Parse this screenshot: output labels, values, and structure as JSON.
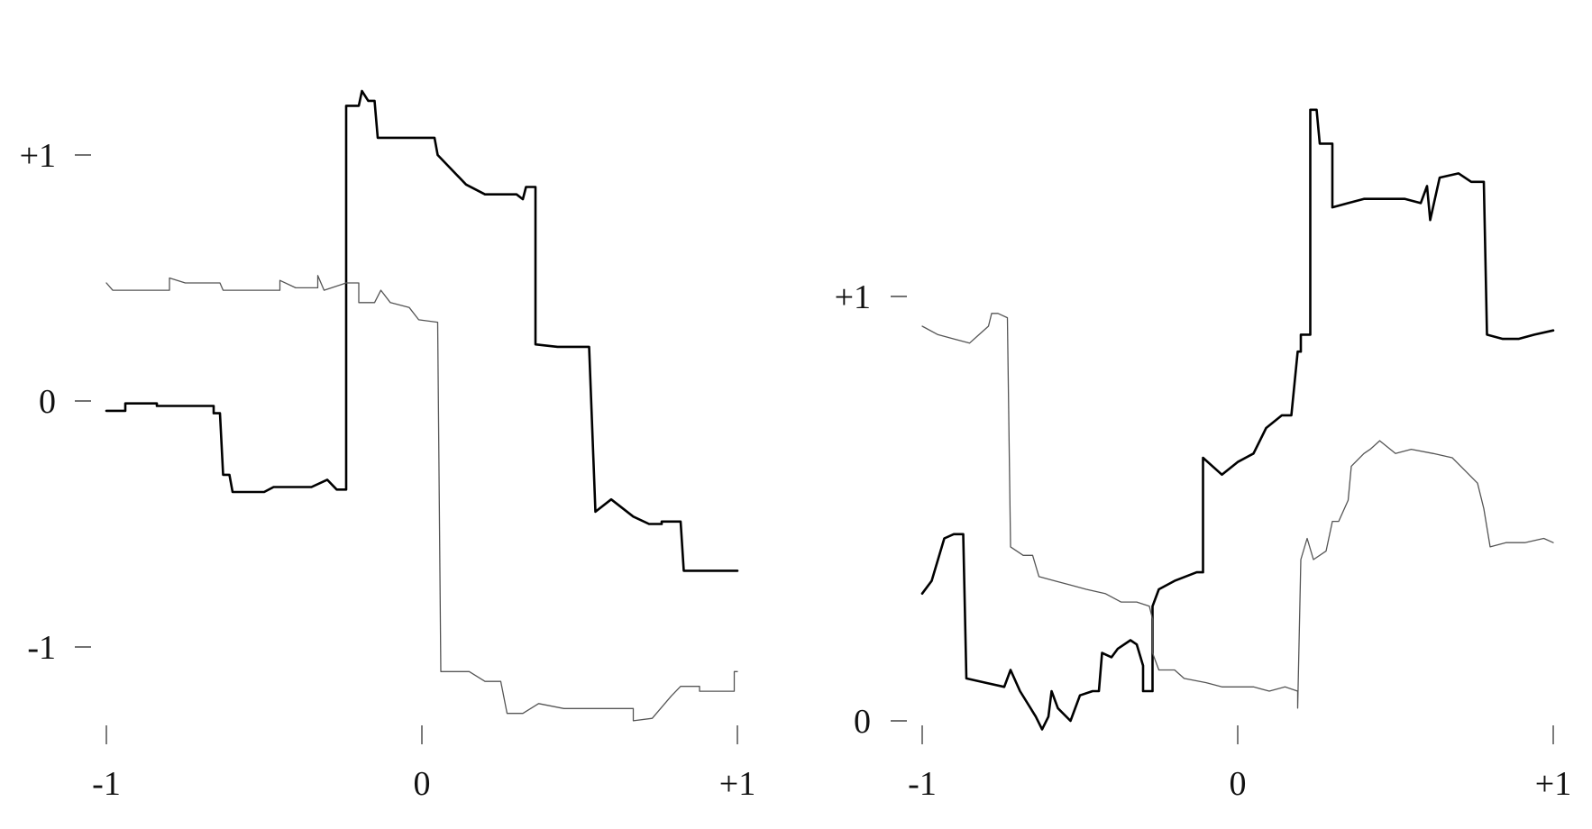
{
  "chart_data": [
    {
      "type": "line",
      "title": "",
      "xlabel": "",
      "ylabel": "",
      "xlim": [
        -1,
        1
      ],
      "ylim": [
        -1.3,
        1.25
      ],
      "x_ticks": [
        {
          "value": -1,
          "label": "-1"
        },
        {
          "value": 0,
          "label": "0"
        },
        {
          "value": 1,
          "label": "+1"
        }
      ],
      "y_ticks": [
        {
          "value": 1,
          "label": "+1"
        },
        {
          "value": 0,
          "label": "0"
        },
        {
          "value": -1,
          "label": "-1"
        }
      ],
      "series": [
        {
          "color": "#000000",
          "weight": "thick",
          "points": [
            [
              -1.0,
              -0.04
            ],
            [
              -0.94,
              -0.04
            ],
            [
              -0.94,
              -0.01
            ],
            [
              -0.84,
              -0.01
            ],
            [
              -0.84,
              -0.02
            ],
            [
              -0.7,
              -0.02
            ],
            [
              -0.66,
              -0.02
            ],
            [
              -0.66,
              -0.05
            ],
            [
              -0.64,
              -0.05
            ],
            [
              -0.63,
              -0.3
            ],
            [
              -0.61,
              -0.3
            ],
            [
              -0.6,
              -0.37
            ],
            [
              -0.5,
              -0.37
            ],
            [
              -0.47,
              -0.35
            ],
            [
              -0.35,
              -0.35
            ],
            [
              -0.3,
              -0.32
            ],
            [
              -0.27,
              -0.36
            ],
            [
              -0.24,
              -0.36
            ],
            [
              -0.24,
              1.2
            ],
            [
              -0.2,
              1.2
            ],
            [
              -0.19,
              1.26
            ],
            [
              -0.17,
              1.22
            ],
            [
              -0.15,
              1.22
            ],
            [
              -0.14,
              1.07
            ],
            [
              -0.04,
              1.07
            ],
            [
              0.04,
              1.07
            ],
            [
              0.05,
              1.0
            ],
            [
              0.14,
              0.88
            ],
            [
              0.2,
              0.84
            ],
            [
              0.3,
              0.84
            ],
            [
              0.32,
              0.82
            ],
            [
              0.33,
              0.87
            ],
            [
              0.36,
              0.87
            ],
            [
              0.36,
              0.23
            ],
            [
              0.43,
              0.22
            ],
            [
              0.53,
              0.22
            ],
            [
              0.55,
              -0.45
            ],
            [
              0.6,
              -0.4
            ],
            [
              0.67,
              -0.47
            ],
            [
              0.72,
              -0.5
            ],
            [
              0.76,
              -0.5
            ],
            [
              0.76,
              -0.49
            ],
            [
              0.82,
              -0.49
            ],
            [
              0.83,
              -0.69
            ],
            [
              0.87,
              -0.69
            ],
            [
              1.0,
              -0.69
            ]
          ]
        },
        {
          "color": "#555555",
          "weight": "thin",
          "points": [
            [
              -1.0,
              0.48
            ],
            [
              -0.98,
              0.45
            ],
            [
              -0.8,
              0.45
            ],
            [
              -0.8,
              0.5
            ],
            [
              -0.75,
              0.48
            ],
            [
              -0.64,
              0.48
            ],
            [
              -0.63,
              0.45
            ],
            [
              -0.5,
              0.45
            ],
            [
              -0.45,
              0.45
            ],
            [
              -0.45,
              0.49
            ],
            [
              -0.4,
              0.46
            ],
            [
              -0.33,
              0.46
            ],
            [
              -0.33,
              0.51
            ],
            [
              -0.31,
              0.45
            ],
            [
              -0.24,
              0.48
            ],
            [
              -0.2,
              0.48
            ],
            [
              -0.2,
              0.4
            ],
            [
              -0.15,
              0.4
            ],
            [
              -0.13,
              0.45
            ],
            [
              -0.1,
              0.4
            ],
            [
              -0.04,
              0.38
            ],
            [
              -0.01,
              0.33
            ],
            [
              0.05,
              0.32
            ],
            [
              0.06,
              -1.1
            ],
            [
              0.15,
              -1.1
            ],
            [
              0.2,
              -1.14
            ],
            [
              0.25,
              -1.14
            ],
            [
              0.27,
              -1.27
            ],
            [
              0.32,
              -1.27
            ],
            [
              0.37,
              -1.23
            ],
            [
              0.45,
              -1.25
            ],
            [
              0.55,
              -1.25
            ],
            [
              0.67,
              -1.25
            ],
            [
              0.67,
              -1.3
            ],
            [
              0.73,
              -1.29
            ],
            [
              0.79,
              -1.2
            ],
            [
              0.82,
              -1.16
            ],
            [
              0.88,
              -1.16
            ],
            [
              0.88,
              -1.18
            ],
            [
              0.99,
              -1.18
            ],
            [
              0.99,
              -1.1
            ],
            [
              1.0,
              -1.1
            ]
          ]
        }
      ]
    },
    {
      "type": "line",
      "title": "",
      "xlabel": "",
      "ylabel": "",
      "xlim": [
        -1,
        1
      ],
      "ylim": [
        -0.05,
        1.5
      ],
      "x_ticks": [
        {
          "value": -1,
          "label": "-1"
        },
        {
          "value": 0,
          "label": "0"
        },
        {
          "value": 1,
          "label": "+1"
        }
      ],
      "y_ticks": [
        {
          "value": 1,
          "label": "+1"
        },
        {
          "value": 0,
          "label": "0"
        }
      ],
      "series": [
        {
          "color": "#000000",
          "weight": "thick",
          "points": [
            [
              -1.0,
              0.3
            ],
            [
              -0.97,
              0.33
            ],
            [
              -0.93,
              0.43
            ],
            [
              -0.9,
              0.44
            ],
            [
              -0.87,
              0.44
            ],
            [
              -0.86,
              0.1
            ],
            [
              -0.8,
              0.09
            ],
            [
              -0.74,
              0.08
            ],
            [
              -0.72,
              0.12
            ],
            [
              -0.69,
              0.07
            ],
            [
              -0.64,
              0.01
            ],
            [
              -0.62,
              -0.02
            ],
            [
              -0.6,
              0.01
            ],
            [
              -0.59,
              0.07
            ],
            [
              -0.57,
              0.03
            ],
            [
              -0.53,
              0.0
            ],
            [
              -0.5,
              0.06
            ],
            [
              -0.46,
              0.07
            ],
            [
              -0.44,
              0.07
            ],
            [
              -0.43,
              0.16
            ],
            [
              -0.4,
              0.15
            ],
            [
              -0.38,
              0.17
            ],
            [
              -0.34,
              0.19
            ],
            [
              -0.32,
              0.18
            ],
            [
              -0.3,
              0.13
            ],
            [
              -0.3,
              0.07
            ],
            [
              -0.27,
              0.07
            ],
            [
              -0.27,
              0.27
            ],
            [
              -0.25,
              0.31
            ],
            [
              -0.2,
              0.33
            ],
            [
              -0.13,
              0.35
            ],
            [
              -0.11,
              0.35
            ],
            [
              -0.11,
              0.62
            ],
            [
              -0.05,
              0.58
            ],
            [
              0.0,
              0.61
            ],
            [
              0.05,
              0.63
            ],
            [
              0.09,
              0.69
            ],
            [
              0.14,
              0.72
            ],
            [
              0.17,
              0.72
            ],
            [
              0.19,
              0.87
            ],
            [
              0.2,
              0.87
            ],
            [
              0.2,
              0.91
            ],
            [
              0.23,
              0.91
            ],
            [
              0.23,
              1.44
            ],
            [
              0.25,
              1.44
            ],
            [
              0.26,
              1.36
            ],
            [
              0.3,
              1.36
            ],
            [
              0.3,
              1.21
            ],
            [
              0.35,
              1.22
            ],
            [
              0.4,
              1.23
            ],
            [
              0.46,
              1.23
            ],
            [
              0.53,
              1.23
            ],
            [
              0.58,
              1.22
            ],
            [
              0.6,
              1.26
            ],
            [
              0.61,
              1.18
            ],
            [
              0.64,
              1.28
            ],
            [
              0.7,
              1.29
            ],
            [
              0.74,
              1.27
            ],
            [
              0.78,
              1.27
            ],
            [
              0.79,
              0.91
            ],
            [
              0.84,
              0.9
            ],
            [
              0.89,
              0.9
            ],
            [
              0.94,
              0.91
            ],
            [
              1.0,
              0.92
            ]
          ]
        },
        {
          "color": "#555555",
          "weight": "thin",
          "points": [
            [
              -1.0,
              0.93
            ],
            [
              -0.95,
              0.91
            ],
            [
              -0.9,
              0.9
            ],
            [
              -0.85,
              0.89
            ],
            [
              -0.82,
              0.91
            ],
            [
              -0.79,
              0.93
            ],
            [
              -0.78,
              0.96
            ],
            [
              -0.76,
              0.96
            ],
            [
              -0.73,
              0.95
            ],
            [
              -0.72,
              0.41
            ],
            [
              -0.68,
              0.39
            ],
            [
              -0.65,
              0.39
            ],
            [
              -0.63,
              0.34
            ],
            [
              -0.58,
              0.33
            ],
            [
              -0.53,
              0.32
            ],
            [
              -0.48,
              0.31
            ],
            [
              -0.42,
              0.3
            ],
            [
              -0.37,
              0.28
            ],
            [
              -0.32,
              0.28
            ],
            [
              -0.28,
              0.27
            ],
            [
              -0.27,
              0.24
            ],
            [
              -0.27,
              0.16
            ],
            [
              -0.25,
              0.12
            ],
            [
              -0.2,
              0.12
            ],
            [
              -0.17,
              0.1
            ],
            [
              -0.1,
              0.09
            ],
            [
              -0.05,
              0.08
            ],
            [
              0.0,
              0.08
            ],
            [
              0.05,
              0.08
            ],
            [
              0.1,
              0.07
            ],
            [
              0.15,
              0.08
            ],
            [
              0.19,
              0.07
            ],
            [
              0.19,
              0.03
            ],
            [
              0.2,
              0.38
            ],
            [
              0.22,
              0.43
            ],
            [
              0.24,
              0.38
            ],
            [
              0.28,
              0.4
            ],
            [
              0.3,
              0.47
            ],
            [
              0.32,
              0.47
            ],
            [
              0.35,
              0.52
            ],
            [
              0.36,
              0.6
            ],
            [
              0.4,
              0.63
            ],
            [
              0.42,
              0.64
            ],
            [
              0.45,
              0.66
            ],
            [
              0.5,
              0.63
            ],
            [
              0.55,
              0.64
            ],
            [
              0.62,
              0.63
            ],
            [
              0.68,
              0.62
            ],
            [
              0.72,
              0.59
            ],
            [
              0.76,
              0.56
            ],
            [
              0.78,
              0.5
            ],
            [
              0.8,
              0.41
            ],
            [
              0.85,
              0.42
            ],
            [
              0.91,
              0.42
            ],
            [
              0.97,
              0.43
            ],
            [
              1.0,
              0.42
            ]
          ]
        }
      ]
    }
  ]
}
